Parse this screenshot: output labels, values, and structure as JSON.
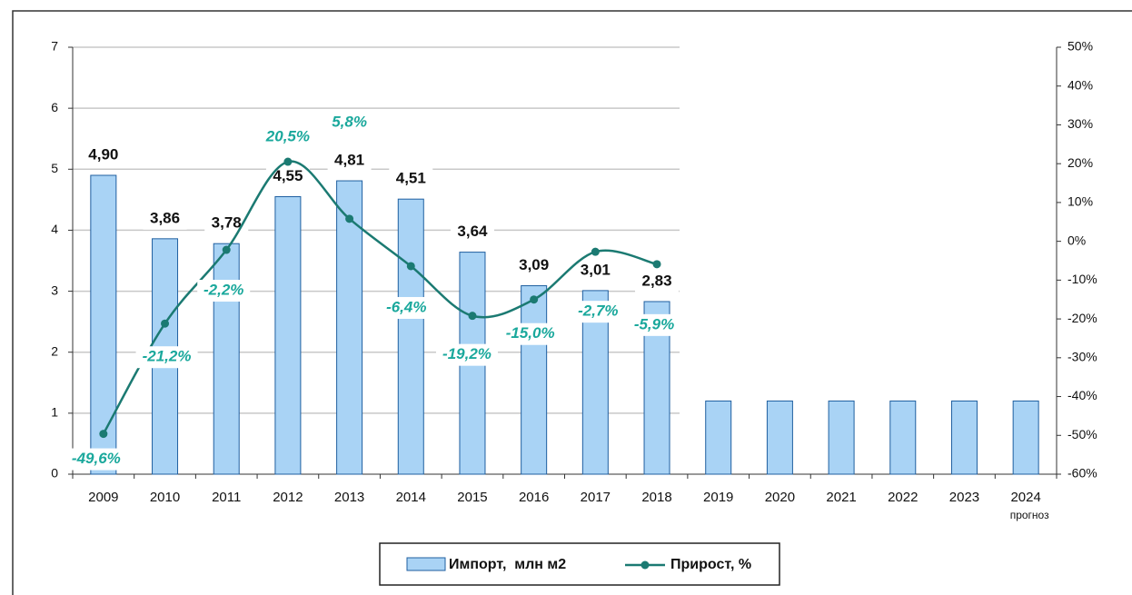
{
  "chart_data": {
    "type": "bar",
    "categories": [
      "2009",
      "2010",
      "2011",
      "2012",
      "2013",
      "2014",
      "2015",
      "2016",
      "2017",
      "2018",
      "2019",
      "2020",
      "2021",
      "2022",
      "2023",
      "2024"
    ],
    "annotation": "прогноз",
    "series": [
      {
        "name": "Импорт,  млн м2",
        "type": "bar",
        "color": "#a9d3f5",
        "edgecolor": "#1f5fa0",
        "values": [
          4.9,
          3.86,
          3.78,
          4.55,
          4.81,
          4.51,
          3.64,
          3.09,
          3.01,
          2.83,
          1.2,
          1.2,
          1.2,
          1.2,
          1.2,
          1.2
        ],
        "value_labels": [
          "4,90",
          "3,86",
          "3,78",
          "4,55",
          "4,81",
          "4,51",
          "3,64",
          "3,09",
          "3,01",
          "2,83",
          null,
          null,
          null,
          null,
          null,
          null
        ]
      },
      {
        "name": "Прирост, %",
        "type": "line",
        "axis": "y2",
        "color": "#1b7a72",
        "label_color": "#1aa89c",
        "values": [
          -49.6,
          -21.2,
          -2.2,
          20.5,
          5.8,
          -6.4,
          -19.2,
          -15.0,
          -2.7,
          -5.9,
          null,
          null,
          null,
          null,
          null,
          null
        ],
        "value_labels": [
          "-49,6%",
          "-21,2%",
          "-2,2%",
          "20,5%",
          "5,8%",
          "-6,4%",
          "-19,2%",
          "-15,0%",
          "-2,7%",
          "-5,9%",
          null,
          null,
          null,
          null,
          null,
          null
        ]
      }
    ],
    "ylim": [
      0,
      7
    ],
    "yticks": [
      0,
      1,
      2,
      3,
      4,
      5,
      6,
      7
    ],
    "y2lim": [
      -60,
      50
    ],
    "y2ticks": [
      {
        "value": -60,
        "label": "-60%"
      },
      {
        "value": -50,
        "label": "-50%"
      },
      {
        "value": -40,
        "label": "-40%"
      },
      {
        "value": -30,
        "label": "-30%"
      },
      {
        "value": -20,
        "label": "-20%"
      },
      {
        "value": -10,
        "label": "-10%"
      },
      {
        "value": 0,
        "label": "0%"
      },
      {
        "value": 10,
        "label": "10%"
      },
      {
        "value": 20,
        "label": "20%"
      },
      {
        "value": 30,
        "label": "30%"
      },
      {
        "value": 40,
        "label": "40%"
      },
      {
        "value": 50,
        "label": "50%"
      }
    ],
    "grid": true
  }
}
